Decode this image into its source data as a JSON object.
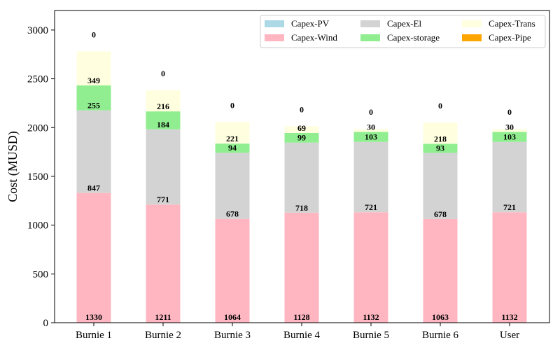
{
  "chart_data": {
    "type": "bar",
    "stacked": true,
    "categories": [
      "Burnie 1",
      "Burnie 2",
      "Burnie 3",
      "Burnie 4",
      "Burnie 5",
      "Burnie 6",
      "User"
    ],
    "ylabel": "Cost (MUSD)",
    "xlabel": "",
    "ylim": [
      0,
      3200
    ],
    "yticks": [
      0,
      500,
      1000,
      1500,
      2000,
      2500,
      3000
    ],
    "grid": false,
    "legend_position": "top-right",
    "legend_columns": 3,
    "series": [
      {
        "name": "Capex-PV",
        "color": "#add8e6",
        "values": [
          0,
          0,
          0,
          0,
          0,
          0,
          0
        ],
        "labels": [
          "",
          "",
          "",
          "",
          "",
          "",
          ""
        ]
      },
      {
        "name": "Capex-Wind",
        "color": "#ffb6c1",
        "values": [
          1330,
          1211,
          1064,
          1128,
          1132,
          1063,
          1132
        ],
        "labels": [
          "1330",
          "1211",
          "1064",
          "1128",
          "1132",
          "1063",
          "1132"
        ]
      },
      {
        "name": "Capex-El",
        "color": "#d3d3d3",
        "values": [
          847,
          771,
          678,
          718,
          721,
          678,
          721
        ],
        "labels": [
          "847",
          "771",
          "678",
          "718",
          "721",
          "678",
          "721"
        ]
      },
      {
        "name": "Capex-storage",
        "color": "#90ee90",
        "values": [
          255,
          184,
          94,
          99,
          103,
          93,
          103
        ],
        "labels": [
          "255",
          "184",
          "94",
          "99",
          "103",
          "93",
          "103"
        ]
      },
      {
        "name": "Capex-Trans",
        "color": "#ffffe0",
        "values": [
          349,
          216,
          221,
          69,
          30,
          218,
          30
        ],
        "labels": [
          "349",
          "216",
          "221",
          "69",
          "30",
          "218",
          "30"
        ]
      },
      {
        "name": "Capex-Pipe",
        "color": "#ffa500",
        "values": [
          0,
          0,
          0,
          0,
          0,
          0,
          0
        ],
        "labels": [
          "0",
          "0",
          "0",
          "0",
          "0",
          "0",
          "0"
        ]
      }
    ]
  }
}
